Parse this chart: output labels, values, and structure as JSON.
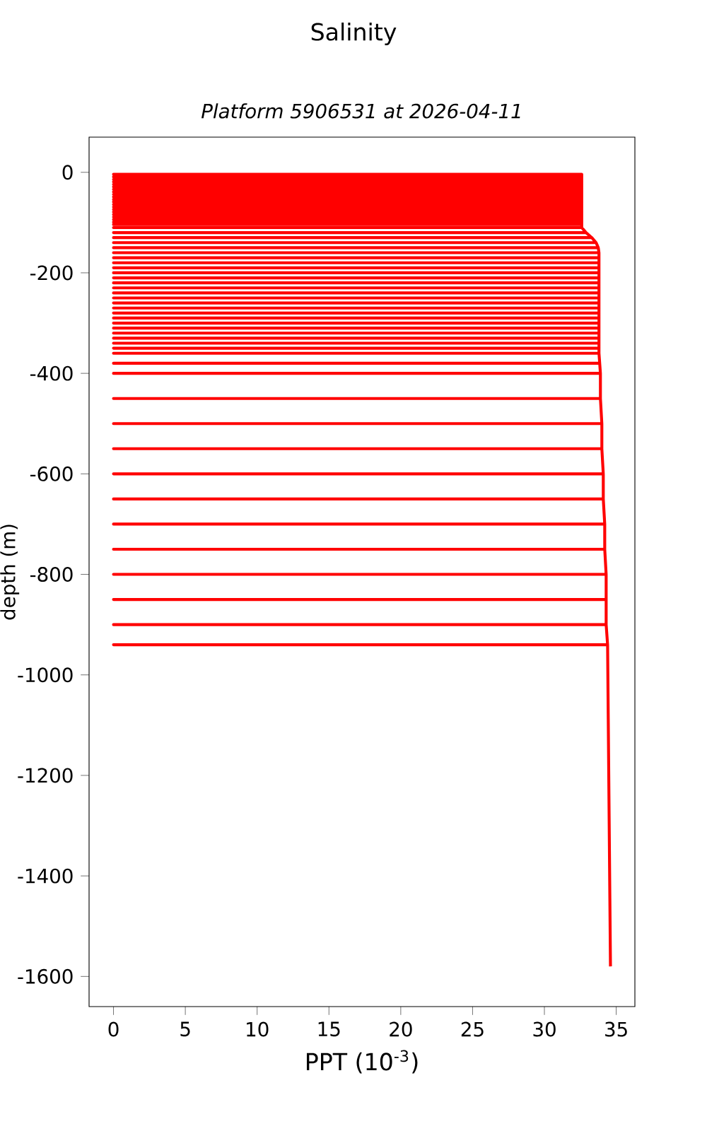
{
  "chart_data": {
    "type": "line",
    "title": "Salinity",
    "subtitle": "Platform 5906531 at 2026-04-11",
    "xlabel": "PPT (10$^{-3}$)",
    "ylabel": "depth (m)",
    "xlim": [
      -1.7,
      36.3
    ],
    "ylim": [
      -1660,
      70
    ],
    "xticks": [
      0,
      5,
      10,
      15,
      20,
      25,
      30,
      35
    ],
    "yticks": [
      -1600,
      -1400,
      -1200,
      -1000,
      -800,
      -600,
      -400,
      -200,
      0
    ],
    "grid": false,
    "marker": "none",
    "line_style": "solid",
    "series": [
      {
        "color": "#ff0000",
        "x": [
          32.6,
          0,
          32.6,
          32.6,
          0,
          32.6,
          32.6,
          0,
          32.6,
          32.6,
          0,
          32.6,
          32.6,
          0,
          32.6,
          32.6,
          0,
          32.6,
          32.6,
          0,
          32.6,
          32.6,
          0,
          32.6,
          32.6,
          0,
          32.6,
          32.6,
          0,
          32.6,
          32.6,
          0,
          32.6,
          32.6,
          0,
          32.6,
          32.6,
          0,
          32.6,
          32.6,
          0,
          32.6,
          32.6,
          0,
          32.6,
          32.6,
          0,
          32.6,
          32.6,
          0,
          32.6,
          32.6,
          0,
          32.6,
          32.6,
          0,
          32.6,
          32.6,
          0,
          32.6,
          32.6,
          0,
          32.6,
          32.6,
          0,
          32.6,
          32.9,
          0,
          32.9,
          33.3,
          0,
          33.3,
          33.6,
          0,
          33.6,
          33.75,
          0,
          33.75,
          33.8,
          0,
          33.8,
          33.8,
          0,
          33.8,
          33.8,
          0,
          33.8,
          33.8,
          0,
          33.8,
          33.8,
          0,
          33.8,
          33.8,
          0,
          33.8,
          33.8,
          0,
          33.8,
          33.8,
          0,
          33.8,
          33.8,
          0,
          33.8,
          33.8,
          0,
          33.8,
          33.8,
          0,
          33.8,
          33.8,
          0,
          33.8,
          33.8,
          0,
          33.8,
          33.8,
          0,
          33.8,
          33.8,
          0,
          33.8,
          33.8,
          0,
          33.8,
          33.8,
          0,
          33.8,
          33.8,
          0,
          33.8,
          33.8,
          0,
          33.8,
          33.8,
          0,
          33.8,
          33.8,
          0,
          33.8,
          33.85,
          0,
          33.85,
          33.9,
          0,
          33.9,
          33.9,
          0,
          33.9,
          34,
          0,
          34,
          34,
          0,
          34,
          34.1,
          0,
          34.1,
          34.1,
          0,
          34.1,
          34.2,
          0,
          34.2,
          34.2,
          0,
          34.2,
          34.3,
          0,
          34.3,
          34.3,
          0,
          34.3,
          34.3,
          0,
          34.3,
          34.4,
          0,
          34.4,
          34.6
        ],
        "values": [
          -4,
          -4,
          -4,
          -9,
          -9,
          -9,
          -14,
          -14,
          -14,
          -19,
          -19,
          -19,
          -24,
          -24,
          -24,
          -29,
          -29,
          -29,
          -34,
          -34,
          -34,
          -39,
          -39,
          -39,
          -44,
          -44,
          -44,
          -49,
          -49,
          -49,
          -54,
          -54,
          -54,
          -59,
          -59,
          -59,
          -64,
          -64,
          -64,
          -69,
          -69,
          -69,
          -74,
          -74,
          -74,
          -79,
          -79,
          -79,
          -84,
          -84,
          -84,
          -89,
          -89,
          -89,
          -94,
          -94,
          -94,
          -99,
          -99,
          -99,
          -104,
          -104,
          -104,
          -110,
          -110,
          -110,
          -120,
          -120,
          -120,
          -130,
          -130,
          -130,
          -140,
          -140,
          -140,
          -150,
          -150,
          -150,
          -160,
          -160,
          -160,
          -170,
          -170,
          -170,
          -180,
          -180,
          -180,
          -190,
          -190,
          -190,
          -200,
          -200,
          -200,
          -210,
          -210,
          -210,
          -220,
          -220,
          -220,
          -230,
          -230,
          -230,
          -240,
          -240,
          -240,
          -250,
          -250,
          -250,
          -260,
          -260,
          -260,
          -270,
          -270,
          -270,
          -280,
          -280,
          -280,
          -290,
          -290,
          -290,
          -300,
          -300,
          -300,
          -310,
          -310,
          -310,
          -320,
          -320,
          -320,
          -330,
          -330,
          -330,
          -340,
          -340,
          -340,
          -350,
          -350,
          -350,
          -360,
          -360,
          -360,
          -380,
          -380,
          -380,
          -400,
          -400,
          -400,
          -450,
          -450,
          -450,
          -500,
          -500,
          -500,
          -550,
          -550,
          -550,
          -600,
          -600,
          -600,
          -650,
          -650,
          -650,
          -700,
          -700,
          -700,
          -750,
          -750,
          -750,
          -800,
          -800,
          -800,
          -850,
          -850,
          -850,
          -900,
          -900,
          -900,
          -940,
          -940,
          -940,
          -1580
        ]
      }
    ]
  }
}
